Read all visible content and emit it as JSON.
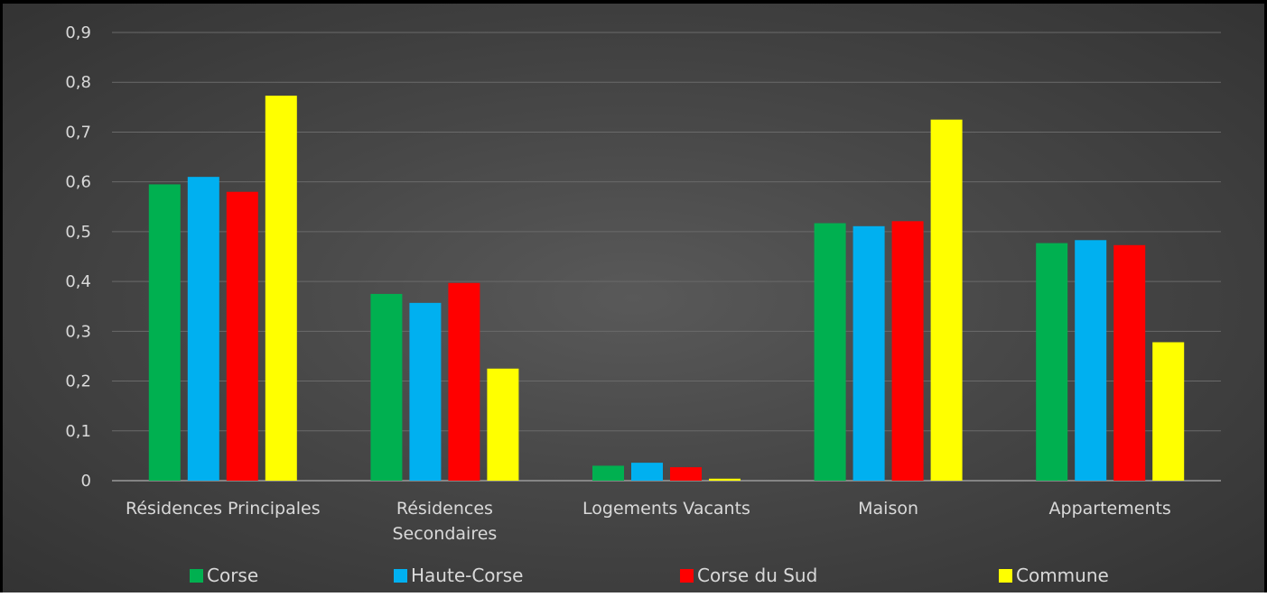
{
  "chart_data": {
    "type": "bar",
    "title": "",
    "xlabel": "",
    "ylabel": "",
    "categories": [
      [
        "Résidences Principales"
      ],
      [
        "Résidences",
        "Secondaires"
      ],
      [
        "Logements Vacants"
      ],
      [
        "Maison"
      ],
      [
        "Appartements"
      ]
    ],
    "series": [
      {
        "name": "Corse",
        "color": "#00b050",
        "values": [
          0.595,
          0.375,
          0.03,
          0.517,
          0.477
        ]
      },
      {
        "name": "Haute-Corse",
        "color": "#00b0f0",
        "values": [
          0.61,
          0.357,
          0.036,
          0.511,
          0.483
        ]
      },
      {
        "name": "Corse du Sud",
        "color": "#ff0000",
        "values": [
          0.58,
          0.397,
          0.027,
          0.521,
          0.473
        ]
      },
      {
        "name": "Commune",
        "color": "#ffff00",
        "values": [
          0.773,
          0.225,
          0.004,
          0.725,
          0.278
        ]
      }
    ],
    "ylim": [
      0,
      0.9
    ],
    "yticks": [
      "0",
      "0,1",
      "0,2",
      "0,3",
      "0,4",
      "0,5",
      "0,6",
      "0,7",
      "0,8",
      "0,9"
    ],
    "grid": true,
    "legend_position": "bottom"
  }
}
